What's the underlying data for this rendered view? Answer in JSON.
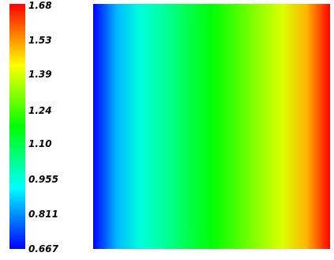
{
  "chart_data": {
    "type": "heatmap",
    "title": "",
    "xlabel": "",
    "ylabel": "",
    "colorbar": {
      "min": 0.667,
      "max": 1.68,
      "tick_labels": [
        "1.68",
        "1.53",
        "1.39",
        "1.24",
        "1.10",
        "0.955",
        "0.811",
        "0.667"
      ],
      "tick_values": [
        1.68,
        1.53,
        1.39,
        1.24,
        1.1,
        0.955,
        0.811,
        0.667
      ],
      "colormap": [
        "#0000ff",
        "#00ffff",
        "#00ff00",
        "#ffff00",
        "#ff0000"
      ],
      "placement": "left"
    },
    "field": {
      "direction": "left-to-right",
      "left_value": 0.667,
      "right_value": 1.68,
      "note_values_x": [
        0.0,
        0.1,
        0.2,
        0.3,
        0.4,
        0.5,
        0.6,
        0.7,
        0.8,
        0.9,
        1.0
      ],
      "values": [
        0.667,
        0.85,
        0.955,
        1.02,
        1.1,
        1.17,
        1.24,
        1.32,
        1.39,
        1.5,
        1.68
      ]
    }
  }
}
